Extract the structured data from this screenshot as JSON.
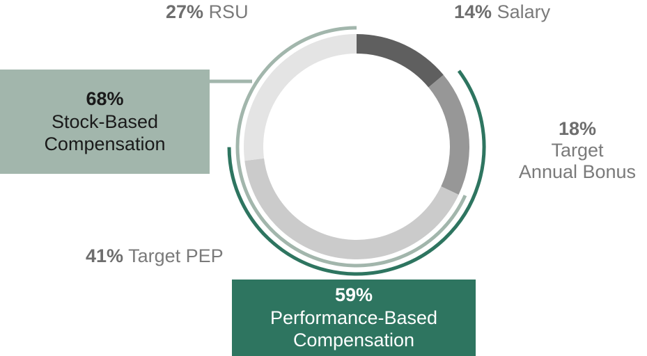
{
  "chart_data": {
    "type": "pie",
    "slices": [
      {
        "label": "Salary",
        "value": 14,
        "pct_text": "14%",
        "color": "#5f5f5f"
      },
      {
        "label": "Target Annual Bonus",
        "label_lines": [
          "Target",
          "Annual Bonus"
        ],
        "value": 18,
        "pct_text": "18%",
        "color": "#979797"
      },
      {
        "label": "Target PEP",
        "value": 41,
        "pct_text": "41%",
        "color": "#cbcbcb"
      },
      {
        "label": "RSU",
        "value": 27,
        "pct_text": "27%",
        "color": "#e4e4e4"
      }
    ],
    "groups": [
      {
        "label": "Stock-Based Compensation",
        "label_lines": [
          "Stock-Based",
          "Compensation"
        ],
        "value": 68,
        "pct_text": "68%",
        "color": "#a2b6ac",
        "text_color": "#1a1a1a",
        "covers": [
          "Target PEP",
          "RSU"
        ]
      },
      {
        "label": "Performance-Based Compensation",
        "label_lines": [
          "Performance-Based",
          "Compensation"
        ],
        "value": 59,
        "pct_text": "59%",
        "color": "#2e7560",
        "text_color": "#ffffff",
        "covers": [
          "Target Annual Bonus",
          "Target PEP"
        ]
      }
    ]
  }
}
